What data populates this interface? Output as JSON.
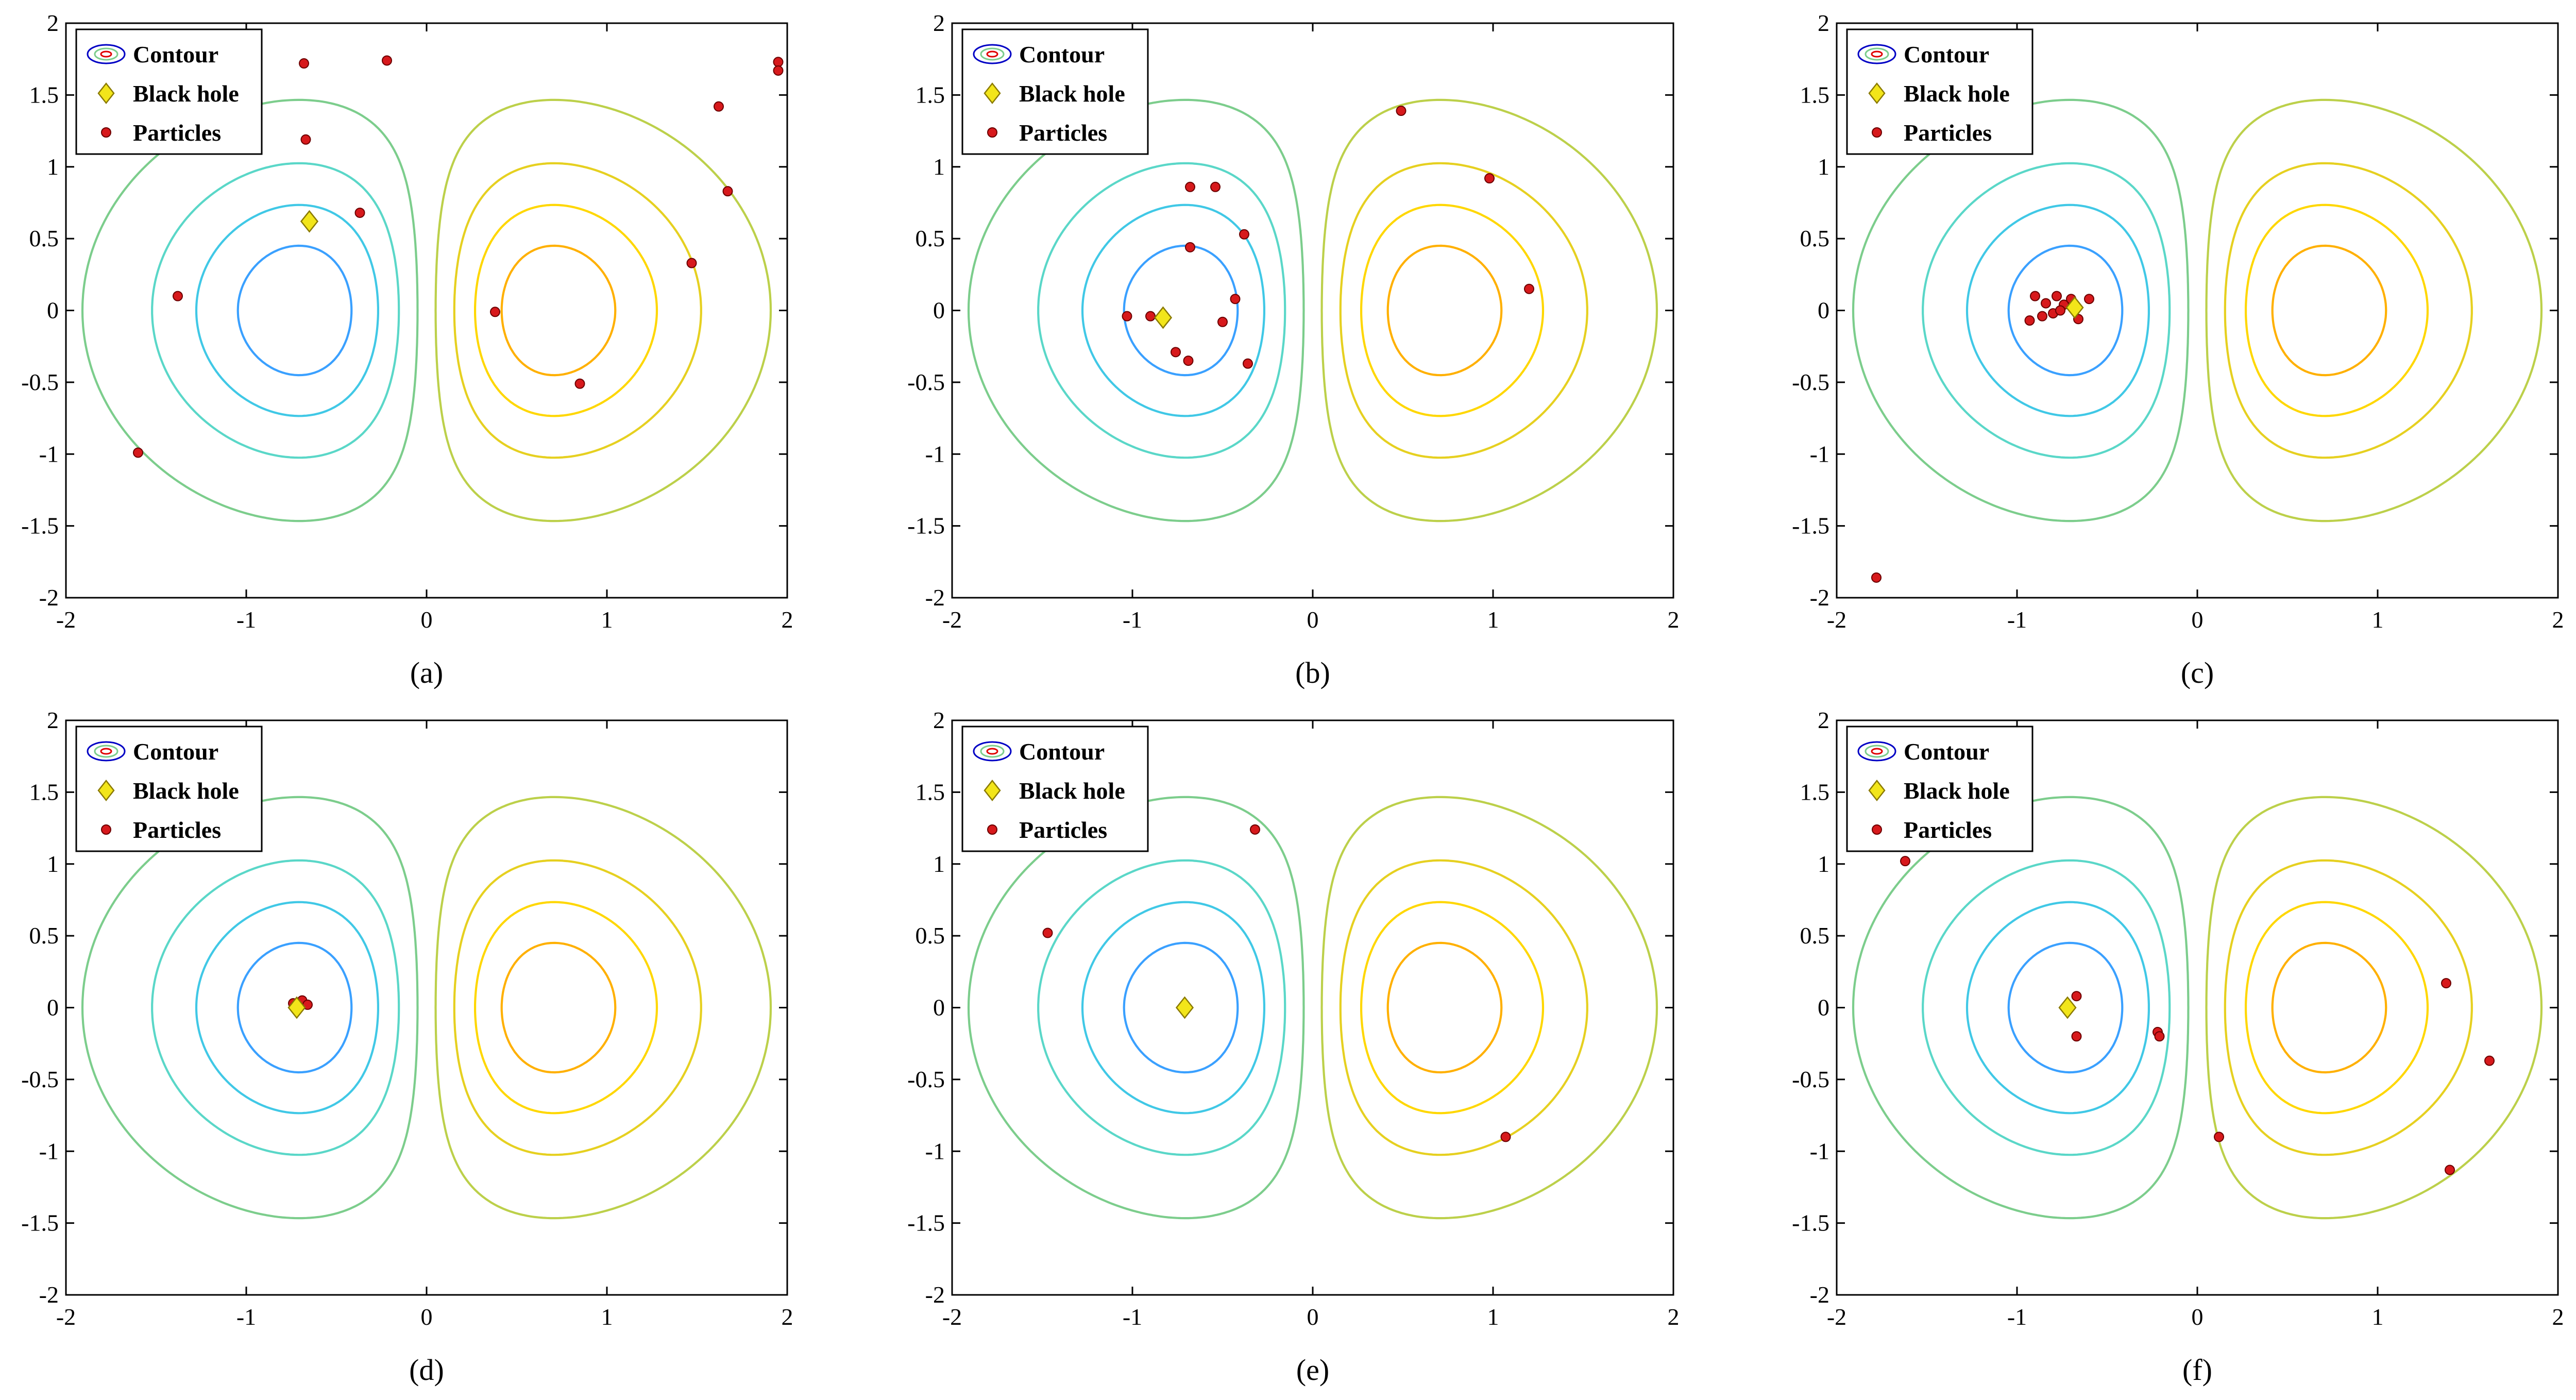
{
  "legend_items": [
    {
      "label": "Contour",
      "icon": "contour-icon"
    },
    {
      "label": "Black hole",
      "icon": "diamond-icon",
      "color": "#f2e51a"
    },
    {
      "label": "Particles",
      "icon": "dot-icon",
      "color": "#d7191c"
    }
  ],
  "colors": {
    "levels": [
      "#00008f",
      "#0000c4",
      "#0000ff",
      "#1c3cff",
      "#2f78ff",
      "#3aa0ff",
      "#40c8e6",
      "#5ad7c8",
      "#7ccd8c",
      "#bcd04a",
      "#e6d020",
      "#ffd700",
      "#ffb000",
      "#ff8c00",
      "#ff5a00",
      "#ff2a00",
      "#e00000",
      "#b00000",
      "#800000"
    ],
    "particle": "#d7191c",
    "black_hole": "#f2e51a"
  },
  "chart_data": [
    {
      "type": "scatter",
      "caption": "(a)",
      "xlim": [
        -2,
        2
      ],
      "ylim": [
        -2,
        2
      ],
      "xticks": [
        "-2",
        "-1",
        "0",
        "1",
        "2"
      ],
      "yticks": [
        "-2",
        "-1.5",
        "-1",
        "-0.5",
        "0",
        "0.5",
        "1",
        "1.5",
        "2"
      ],
      "contour_levels": [
        -0.85,
        -0.75,
        -0.65,
        -0.55,
        -0.45,
        -0.35,
        -0.25,
        -0.15,
        -0.05,
        0.05,
        0.15,
        0.25,
        0.35,
        0.45,
        0.55,
        0.65,
        0.75,
        0.85
      ],
      "black_hole": {
        "x": -0.65,
        "y": 0.62
      },
      "particles": [
        [
          -0.68,
          1.72
        ],
        [
          -0.22,
          1.74
        ],
        [
          -0.67,
          1.19
        ],
        [
          -0.37,
          0.68
        ],
        [
          -1.38,
          0.1
        ],
        [
          -1.6,
          -0.99
        ],
        [
          0.38,
          -0.01
        ],
        [
          0.85,
          -0.51
        ],
        [
          1.47,
          0.33
        ],
        [
          1.67,
          0.83
        ],
        [
          1.62,
          1.42
        ],
        [
          1.95,
          1.73
        ],
        [
          1.95,
          1.67
        ]
      ]
    },
    {
      "type": "scatter",
      "caption": "(b)",
      "xlim": [
        -2,
        2
      ],
      "ylim": [
        -2,
        2
      ],
      "xticks": [
        "-2",
        "-1",
        "0",
        "1",
        "2"
      ],
      "yticks": [
        "-2",
        "-1.5",
        "-1",
        "-0.5",
        "0",
        "0.5",
        "1",
        "1.5",
        "2"
      ],
      "contour_levels": [
        -0.85,
        -0.75,
        -0.65,
        -0.55,
        -0.45,
        -0.35,
        -0.25,
        -0.15,
        -0.05,
        0.05,
        0.15,
        0.25,
        0.35,
        0.45,
        0.55,
        0.65,
        0.75,
        0.85
      ],
      "black_hole": {
        "x": -0.83,
        "y": -0.05
      },
      "particles": [
        [
          -0.68,
          0.86
        ],
        [
          -0.54,
          0.86
        ],
        [
          -0.68,
          0.44
        ],
        [
          -0.38,
          0.53
        ],
        [
          -1.03,
          -0.04
        ],
        [
          -0.9,
          -0.04
        ],
        [
          -0.5,
          -0.08
        ],
        [
          -0.43,
          0.08
        ],
        [
          -0.76,
          -0.29
        ],
        [
          -0.69,
          -0.35
        ],
        [
          -0.36,
          -0.37
        ],
        [
          0.49,
          1.39
        ],
        [
          0.98,
          0.92
        ],
        [
          1.2,
          0.15
        ]
      ]
    },
    {
      "type": "scatter",
      "caption": "(c)",
      "xlim": [
        -2,
        2
      ],
      "ylim": [
        -2,
        2
      ],
      "xticks": [
        "-2",
        "-1",
        "0",
        "1",
        "2"
      ],
      "yticks": [
        "-2",
        "-1.5",
        "-1",
        "-0.5",
        "0",
        "0.5",
        "1",
        "1.5",
        "2"
      ],
      "contour_levels": [
        -0.85,
        -0.75,
        -0.65,
        -0.55,
        -0.45,
        -0.35,
        -0.25,
        -0.15,
        -0.05,
        0.05,
        0.15,
        0.25,
        0.35,
        0.45,
        0.55,
        0.65,
        0.75,
        0.85
      ],
      "black_hole": {
        "x": -0.68,
        "y": 0.02
      },
      "particles": [
        [
          -0.9,
          0.1
        ],
        [
          -0.84,
          0.05
        ],
        [
          -0.78,
          0.1
        ],
        [
          -0.8,
          -0.02
        ],
        [
          -0.74,
          0.04
        ],
        [
          -0.7,
          0.08
        ],
        [
          -0.86,
          -0.04
        ],
        [
          -0.93,
          -0.07
        ],
        [
          -0.66,
          -0.06
        ],
        [
          -0.6,
          0.08
        ],
        [
          -0.76,
          0.0
        ],
        [
          -1.78,
          -1.86
        ]
      ]
    },
    {
      "type": "scatter",
      "caption": "(d)",
      "xlim": [
        -2,
        2
      ],
      "ylim": [
        -2,
        2
      ],
      "xticks": [
        "-2",
        "-1",
        "0",
        "1",
        "2"
      ],
      "yticks": [
        "-2",
        "-1.5",
        "-1",
        "-0.5",
        "0",
        "0.5",
        "1",
        "1.5",
        "2"
      ],
      "contour_levels": [
        -0.85,
        -0.75,
        -0.65,
        -0.55,
        -0.45,
        -0.35,
        -0.25,
        -0.15,
        -0.05,
        0.05,
        0.15,
        0.25,
        0.35,
        0.45,
        0.55,
        0.65,
        0.75,
        0.85
      ],
      "black_hole": {
        "x": -0.72,
        "y": 0.0
      },
      "particles": [
        [
          -0.69,
          0.05
        ],
        [
          -0.66,
          0.02
        ],
        [
          -0.74,
          0.03
        ]
      ]
    },
    {
      "type": "scatter",
      "caption": "(e)",
      "xlim": [
        -2,
        2
      ],
      "ylim": [
        -2,
        2
      ],
      "xticks": [
        "-2",
        "-1",
        "0",
        "1",
        "2"
      ],
      "yticks": [
        "-2",
        "-1.5",
        "-1",
        "-0.5",
        "0",
        "0.5",
        "1",
        "1.5",
        "2"
      ],
      "contour_levels": [
        -0.85,
        -0.75,
        -0.65,
        -0.55,
        -0.45,
        -0.35,
        -0.25,
        -0.15,
        -0.05,
        0.05,
        0.15,
        0.25,
        0.35,
        0.45,
        0.55,
        0.65,
        0.75,
        0.85
      ],
      "black_hole": {
        "x": -0.71,
        "y": 0.0
      },
      "particles": [
        [
          -1.47,
          0.52
        ],
        [
          -0.32,
          1.24
        ],
        [
          1.07,
          -0.9
        ]
      ]
    },
    {
      "type": "scatter",
      "caption": "(f)",
      "xlim": [
        -2,
        2
      ],
      "ylim": [
        -2,
        2
      ],
      "xticks": [
        "-2",
        "-1",
        "0",
        "1",
        "2"
      ],
      "yticks": [
        "-2",
        "-1.5",
        "-1",
        "-0.5",
        "0",
        "0.5",
        "1",
        "1.5",
        "2"
      ],
      "contour_levels": [
        -0.85,
        -0.75,
        -0.65,
        -0.55,
        -0.45,
        -0.35,
        -0.25,
        -0.15,
        -0.05,
        0.05,
        0.15,
        0.25,
        0.35,
        0.45,
        0.55,
        0.65,
        0.75,
        0.85
      ],
      "black_hole": {
        "x": -0.72,
        "y": 0.0
      },
      "particles": [
        [
          -1.62,
          1.02
        ],
        [
          -0.67,
          0.08
        ],
        [
          -0.67,
          -0.2
        ],
        [
          -0.22,
          -0.17
        ],
        [
          -0.21,
          -0.2
        ],
        [
          0.12,
          -0.9
        ],
        [
          1.38,
          0.17
        ],
        [
          1.62,
          -0.37
        ],
        [
          1.4,
          -1.13
        ]
      ]
    }
  ]
}
